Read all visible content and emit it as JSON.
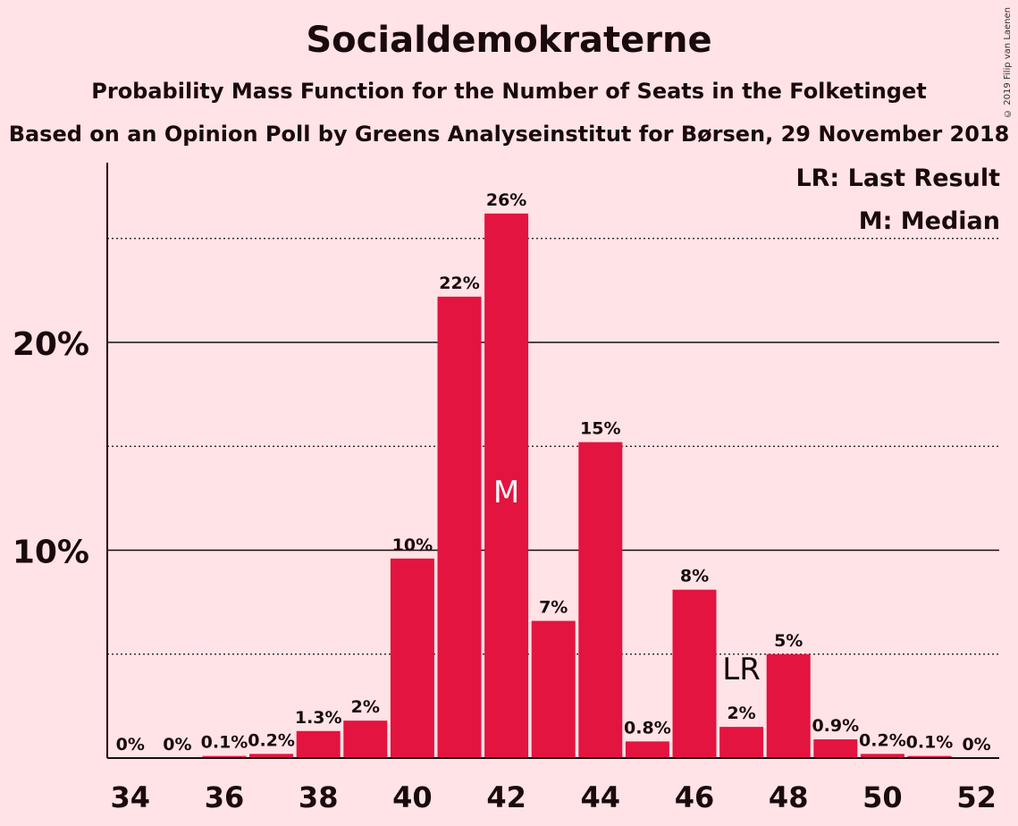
{
  "chart_data": {
    "type": "bar",
    "title": "Socialdemokraterne",
    "subtitle": "Probability Mass Function for the Number of Seats in the Folketinget",
    "subtitle2": "Based on an Opinion Poll by Greens Analyseinstitut for Børsen, 29 November 2018",
    "copyright": "© 2019 Filip van Laenen",
    "categories": [
      34,
      35,
      36,
      37,
      38,
      39,
      40,
      41,
      42,
      43,
      44,
      45,
      46,
      47,
      48,
      49,
      50,
      51,
      52
    ],
    "values": [
      0,
      0,
      0.1,
      0.2,
      1.3,
      1.8,
      9.6,
      22.2,
      26.2,
      6.6,
      15.2,
      0.8,
      8.1,
      1.5,
      5.0,
      0.9,
      0.2,
      0.1,
      0
    ],
    "labels": [
      "0%",
      "0%",
      "0.1%",
      "0.2%",
      "1.3%",
      "2%",
      "10%",
      "22%",
      "26%",
      "7%",
      "15%",
      "0.8%",
      "8%",
      "2%",
      "5%",
      "0.9%",
      "0.2%",
      "0.1%",
      "0%"
    ],
    "x_tick_labels": [
      "34",
      "36",
      "38",
      "40",
      "42",
      "44",
      "46",
      "48",
      "50",
      "52"
    ],
    "x_ticks": [
      34,
      36,
      38,
      40,
      42,
      44,
      46,
      48,
      50,
      52
    ],
    "y_tick_labels": [
      "10%",
      "20%"
    ],
    "y_ticks": [
      10,
      20
    ],
    "y_minor_gridlines": [
      5,
      15,
      25
    ],
    "ylim": [
      0,
      28.5
    ],
    "median_seat": 42,
    "median_marker": "M",
    "last_result_seat": 47,
    "last_result_marker": "LR",
    "legend": [
      "LR: Last Result",
      "M: Median"
    ],
    "legend_position": "top-right",
    "bar_color": "#e3143f"
  }
}
